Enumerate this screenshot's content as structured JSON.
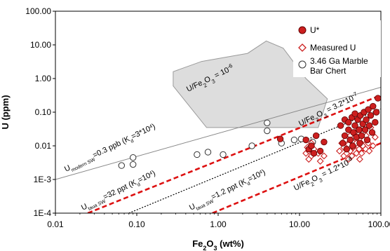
{
  "chart_data": {
    "type": "scatter",
    "xlabel": "Fe2O3 (wt%)",
    "ylabel": "U (ppm)",
    "xscale": "log",
    "yscale": "log",
    "xlim": [
      0.01,
      100
    ],
    "ylim": [
      0.0001,
      100
    ],
    "x_ticks": [
      "0.01",
      "0.10",
      "1.00",
      "10.00",
      "100.00"
    ],
    "y_ticks": [
      "1E-4",
      "1E-3",
      "0.01",
      "0.10",
      "1.00",
      "10.00",
      "100.00"
    ],
    "grid": false,
    "legend": {
      "placement": "top-right",
      "entries": [
        "U*",
        "Measured U",
        "3.46 Ga Marble Bar Chert"
      ]
    },
    "colors": {
      "u_star": "#cc1f1f",
      "measured": "#cc1f1f",
      "red_line": "#dd1111",
      "field": "#dddddd",
      "grey_line": "#888888"
    },
    "annotations": {
      "ratio_upper": "U/Fe₂O₃ = 3.2*10⁻⁷",
      "ratio_lower": "U/Fe₂O₃ = 1.2*10⁻⁸",
      "ratio_modern": "U/Fe₂O₃ = 10⁻⁶",
      "modern_sw": "Uₘₒₔₑᵣₙ SW=0.3 ppb (Kₑ=3*10⁴)",
      "taua_32": "Uₜₐᵤₐ SW=32 ppt (Kₑ=10⁴)",
      "taua_1p2": "Uₜₐᵤₐ SW=1.2 ppt (Kₑ=10⁴)"
    },
    "field_polygon": {
      "name": "3.46 Ga Marble Bar Chert field",
      "x": [
        0.62,
        2.3,
        3.9,
        6.3,
        12.0,
        22.0,
        17.0,
        0.72,
        0.28,
        0.28
      ],
      "y": [
        3.2,
        5.6,
        13.0,
        8.0,
        1.0,
        0.25,
        0.035,
        0.035,
        0.6,
        1.6
      ]
    },
    "lines": [
      {
        "name": "upper-ratio",
        "style": "red-dashed",
        "x": [
          0.025,
          100
        ],
        "y": [
          0.0001,
          0.32
        ]
      },
      {
        "name": "lower-ratio",
        "style": "red-dashed",
        "x": [
          0.85,
          100
        ],
        "y": [
          0.0001,
          0.012
        ]
      },
      {
        "name": "middle-ratio",
        "style": "black-dotted",
        "x": [
          0.08,
          100
        ],
        "y": [
          0.0001,
          0.125
        ]
      },
      {
        "name": "modern-ratio",
        "style": "grey-solid",
        "x": [
          0.01,
          100
        ],
        "y": [
          0.001,
          0.55
        ]
      }
    ],
    "series": [
      {
        "name": "3.46 Ga Marble Bar Chert",
        "marker": "open-circle",
        "x": [
          0.065,
          0.09,
          0.09,
          0.55,
          0.75,
          1.15,
          2.6,
          4.0,
          4.0,
          8.6,
          10.5,
          14.5,
          6.0
        ],
        "y": [
          0.0026,
          0.0028,
          0.0045,
          0.0055,
          0.0065,
          0.0055,
          0.01,
          0.028,
          0.048,
          0.015,
          0.016,
          0.013,
          0.012
        ]
      },
      {
        "name": "Measured U",
        "marker": "diamond",
        "x": [
          12,
          12.5,
          13,
          13,
          14,
          14,
          15,
          17,
          18,
          20,
          31,
          33,
          35,
          35,
          37,
          38,
          40,
          40,
          42,
          42,
          44,
          45,
          46,
          48,
          50,
          50,
          52,
          54,
          55,
          56,
          58,
          60,
          62,
          65,
          66,
          70,
          72,
          75,
          80,
          85
        ],
        "y": [
          0.006,
          0.009,
          0.004,
          0.007,
          0.005,
          0.012,
          0.008,
          0.006,
          0.0035,
          0.005,
          0.007,
          0.012,
          0.005,
          0.009,
          0.015,
          0.006,
          0.004,
          0.011,
          0.007,
          0.02,
          0.005,
          0.013,
          0.009,
          0.025,
          0.006,
          0.012,
          0.018,
          0.008,
          0.004,
          0.03,
          0.006,
          0.01,
          0.015,
          0.008,
          0.02,
          0.012,
          0.007,
          0.035,
          0.01,
          0.018
        ]
      },
      {
        "name": "U*",
        "marker": "filled-circle",
        "x": [
          5.8,
          12,
          13,
          14,
          15,
          16,
          18,
          20,
          32,
          34,
          36,
          36,
          38,
          40,
          40,
          42,
          44,
          45,
          46,
          48,
          48,
          50,
          52,
          54,
          55,
          56,
          58,
          60,
          62,
          64,
          66,
          68,
          70,
          72,
          75,
          78,
          80,
          85,
          88,
          92
        ],
        "y": [
          0.016,
          0.015,
          0.008,
          0.01,
          0.006,
          0.02,
          0.007,
          0.013,
          0.04,
          0.012,
          0.02,
          0.06,
          0.008,
          0.03,
          0.05,
          0.015,
          0.07,
          0.01,
          0.025,
          0.04,
          0.09,
          0.018,
          0.06,
          0.03,
          0.012,
          0.08,
          0.02,
          0.045,
          0.1,
          0.03,
          0.06,
          0.015,
          0.12,
          0.04,
          0.08,
          0.025,
          0.15,
          0.05,
          0.1,
          0.26
        ]
      }
    ]
  }
}
